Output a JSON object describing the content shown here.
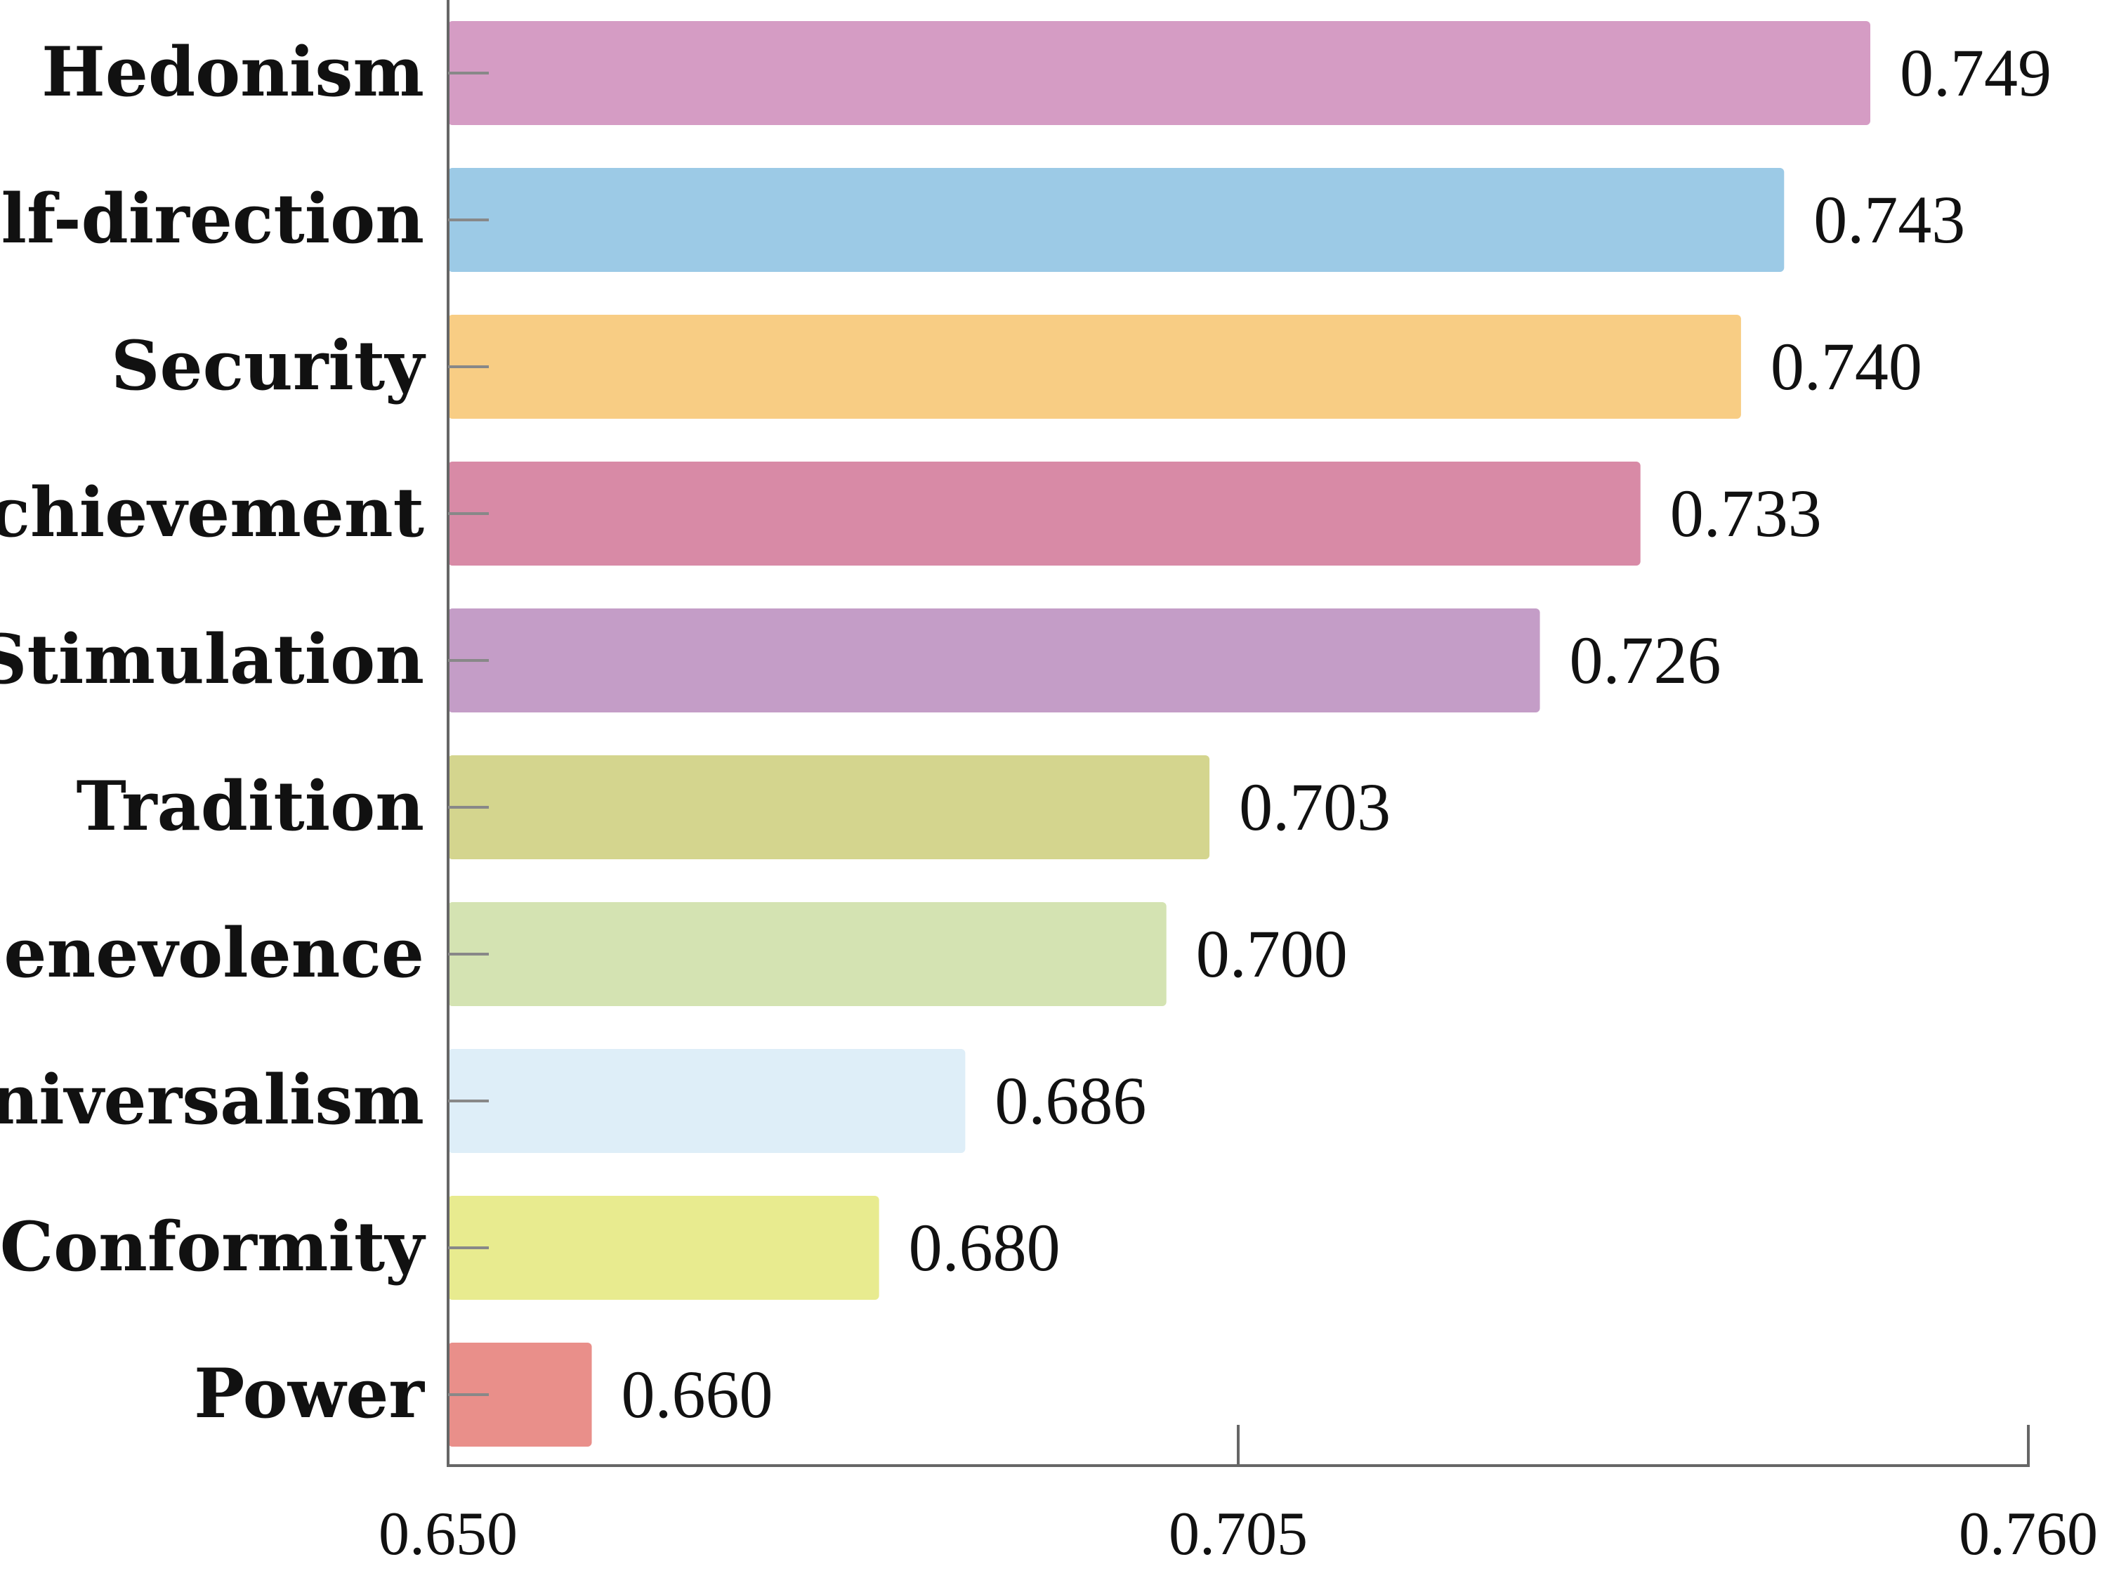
{
  "chart_data": {
    "type": "bar",
    "orientation": "horizontal",
    "categories": [
      "Hedonism",
      "Self-direction",
      "Security",
      "Achievement",
      "Stimulation",
      "Tradition",
      "Benevolence",
      "Universalism",
      "Conformity",
      "Power"
    ],
    "values": [
      0.749,
      0.743,
      0.74,
      0.733,
      0.726,
      0.703,
      0.7,
      0.686,
      0.68,
      0.66
    ],
    "value_labels": [
      "0.749",
      "0.743",
      "0.740",
      "0.733",
      "0.726",
      "0.703",
      "0.700",
      "0.686",
      "0.680",
      "0.660"
    ],
    "colors": [
      "#d59cc4",
      "#9ccae6",
      "#f8cd84",
      "#d88aa6",
      "#c49dc7",
      "#d4d58e",
      "#d4e3b2",
      "#deeef8",
      "#e8eb8f",
      "#e98f8a"
    ],
    "xlim": [
      0.65,
      0.76
    ],
    "xticks": [
      0.65,
      0.705,
      0.76
    ],
    "xtick_labels": [
      "0.650",
      "0.705",
      "0.760"
    ],
    "title": "",
    "xlabel": "",
    "ylabel": "",
    "grid": false,
    "legend": "none"
  }
}
